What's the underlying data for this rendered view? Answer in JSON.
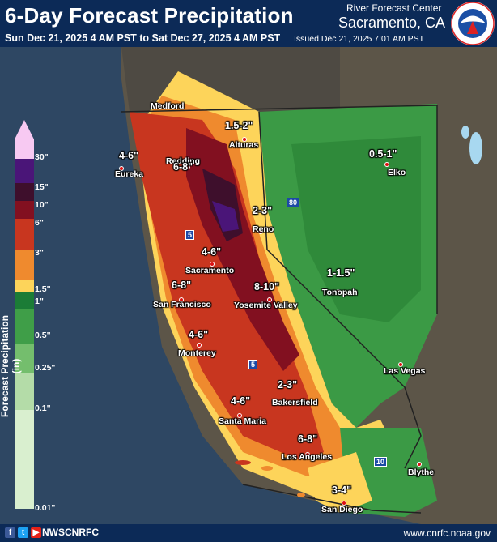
{
  "header": {
    "title": "6-Day Forecast Precipitation",
    "period": "Sun Dec 21, 2025 4 AM PST to Sat Dec 27, 2025 4 AM PST",
    "office_line1": "River Forecast Center",
    "office_line2": "Sacramento, CA",
    "issued": "Issued Dec 21, 2025 7:01 AM PST",
    "logo_text": "NATIONAL WEATHER SERVICE"
  },
  "legend": {
    "title": "Forecast Precipitation (in)",
    "labels": [
      "30\"",
      "15\"",
      "10\"",
      "6\"",
      "3\"",
      "1.5\"",
      "1\"",
      "0.5\"",
      "0.25\"",
      "0.1\"",
      "0.01\""
    ],
    "colors": [
      "#f7c9f2",
      "#4a1578",
      "#3e0f2c",
      "#821020",
      "#c8361f",
      "#ef8a2e",
      "#fdd45a",
      "#1b7c36",
      "#3f9e48",
      "#74be6d",
      "#b4dca8",
      "#d9efcf"
    ]
  },
  "cities": [
    "Medford",
    "Eureka",
    "Redding",
    "Alturas",
    "Elko",
    "Reno",
    "Sacramento",
    "San Francisco",
    "Yosemite Valley",
    "Tonopah",
    "Monterey",
    "Las Vegas",
    "Bakersfield",
    "Santa Maria",
    "Los Angeles",
    "Blythe",
    "San Diego"
  ],
  "amounts": [
    "1.5-2\"",
    "4-6\"",
    "6-8\"",
    "0.5-1\"",
    "2-3\"",
    "4-6\"",
    "6-8\"",
    "8-10\"",
    "1-1.5\"",
    "4-6\"",
    "2-3\"",
    "4-6\"",
    "6-8\"",
    "3-4\""
  ],
  "highways": [
    "80",
    "5",
    "5",
    "10"
  ],
  "footer": {
    "social": [
      "f",
      "t",
      "▶"
    ],
    "handle": "NWSCNRFC",
    "url": "www.cnrfc.noaa.gov"
  }
}
